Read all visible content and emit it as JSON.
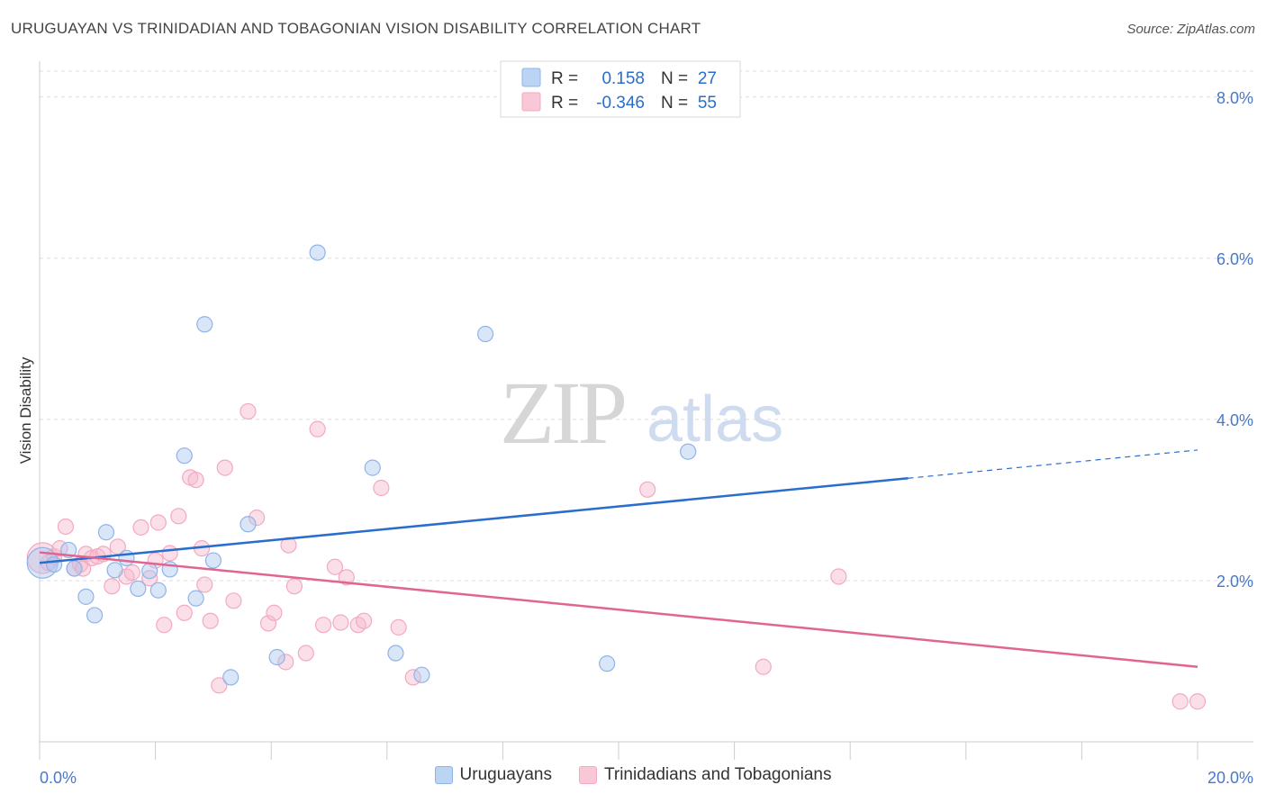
{
  "title": "URUGUAYAN VS TRINIDADIAN AND TOBAGONIAN VISION DISABILITY CORRELATION CHART",
  "source": "Source: ZipAtlas.com",
  "watermark": {
    "zip": "ZIP",
    "atlas": "atlas"
  },
  "chart_data": {
    "type": "scatter",
    "xlabel": "",
    "ylabel": "Vision Disability",
    "xlim": [
      0,
      20
    ],
    "ylim": [
      0,
      8.4
    ],
    "x_tick_labels": [
      "0.0%",
      "20.0%"
    ],
    "y_ticks": [
      2,
      4,
      6,
      8
    ],
    "y_tick_labels": [
      "2.0%",
      "4.0%",
      "6.0%",
      "8.0%"
    ],
    "grid": true,
    "legend": {
      "placement": "top-center",
      "rows": [
        {
          "r_label": "R =",
          "r_value": "0.158",
          "n_label": "N =",
          "n_value": "27"
        },
        {
          "r_label": "R =",
          "r_value": "-0.346",
          "n_label": "N =",
          "n_value": "55"
        }
      ]
    },
    "series": [
      {
        "name": "Uruguayans",
        "color": "#8fb4e8",
        "line_color": "#2a6dcc",
        "trend": {
          "x0": 0,
          "y0": 2.22,
          "x1": 15,
          "y1": 3.27,
          "dash_to_x": 20,
          "dash_to_y": 3.62
        },
        "points": [
          [
            0.05,
            2.22
          ],
          [
            0.25,
            2.2
          ],
          [
            0.5,
            2.38
          ],
          [
            0.6,
            2.15
          ],
          [
            0.8,
            1.8
          ],
          [
            0.95,
            1.57
          ],
          [
            1.15,
            2.6
          ],
          [
            1.3,
            2.13
          ],
          [
            1.5,
            2.28
          ],
          [
            1.7,
            1.9
          ],
          [
            1.9,
            2.12
          ],
          [
            2.05,
            1.88
          ],
          [
            2.25,
            2.14
          ],
          [
            2.5,
            3.55
          ],
          [
            2.7,
            1.78
          ],
          [
            2.85,
            5.18
          ],
          [
            3.0,
            2.25
          ],
          [
            3.3,
            0.8
          ],
          [
            3.6,
            2.7
          ],
          [
            4.1,
            1.05
          ],
          [
            4.8,
            6.07
          ],
          [
            5.75,
            3.4
          ],
          [
            6.15,
            1.1
          ],
          [
            6.6,
            0.83
          ],
          [
            7.7,
            5.06
          ],
          [
            9.8,
            0.97
          ],
          [
            11.2,
            3.6
          ]
        ]
      },
      {
        "name": "Trinidadians and Tobagonians",
        "color": "#f4a9c0",
        "line_color": "#e0668f",
        "trend": {
          "x0": 0,
          "y0": 2.35,
          "x1": 20,
          "y1": 0.93
        },
        "points": [
          [
            0.05,
            2.28
          ],
          [
            0.15,
            2.22
          ],
          [
            0.25,
            2.3
          ],
          [
            0.35,
            2.4
          ],
          [
            0.45,
            2.67
          ],
          [
            0.6,
            2.15
          ],
          [
            0.7,
            2.2
          ],
          [
            0.75,
            2.15
          ],
          [
            0.8,
            2.33
          ],
          [
            0.9,
            2.28
          ],
          [
            1.0,
            2.3
          ],
          [
            1.1,
            2.33
          ],
          [
            1.25,
            1.93
          ],
          [
            1.35,
            2.42
          ],
          [
            1.5,
            2.05
          ],
          [
            1.6,
            2.1
          ],
          [
            1.75,
            2.66
          ],
          [
            1.9,
            2.03
          ],
          [
            2.0,
            2.25
          ],
          [
            2.05,
            2.72
          ],
          [
            2.15,
            1.45
          ],
          [
            2.25,
            2.34
          ],
          [
            2.4,
            2.8
          ],
          [
            2.5,
            1.6
          ],
          [
            2.6,
            3.28
          ],
          [
            2.7,
            3.25
          ],
          [
            2.8,
            2.4
          ],
          [
            2.85,
            1.95
          ],
          [
            2.95,
            1.5
          ],
          [
            3.1,
            0.7
          ],
          [
            3.2,
            3.4
          ],
          [
            3.35,
            1.75
          ],
          [
            3.6,
            4.1
          ],
          [
            3.75,
            2.78
          ],
          [
            3.95,
            1.47
          ],
          [
            4.05,
            1.6
          ],
          [
            4.25,
            0.99
          ],
          [
            4.3,
            2.44
          ],
          [
            4.4,
            1.93
          ],
          [
            4.6,
            1.1
          ],
          [
            4.8,
            3.88
          ],
          [
            4.9,
            1.45
          ],
          [
            5.1,
            2.17
          ],
          [
            5.2,
            1.48
          ],
          [
            5.3,
            2.04
          ],
          [
            5.5,
            1.45
          ],
          [
            5.6,
            1.5
          ],
          [
            5.9,
            3.15
          ],
          [
            6.2,
            1.42
          ],
          [
            6.45,
            0.8
          ],
          [
            10.5,
            3.13
          ],
          [
            12.5,
            0.93
          ],
          [
            13.8,
            2.05
          ],
          [
            19.7,
            0.5
          ],
          [
            20.0,
            0.5
          ]
        ]
      }
    ]
  }
}
